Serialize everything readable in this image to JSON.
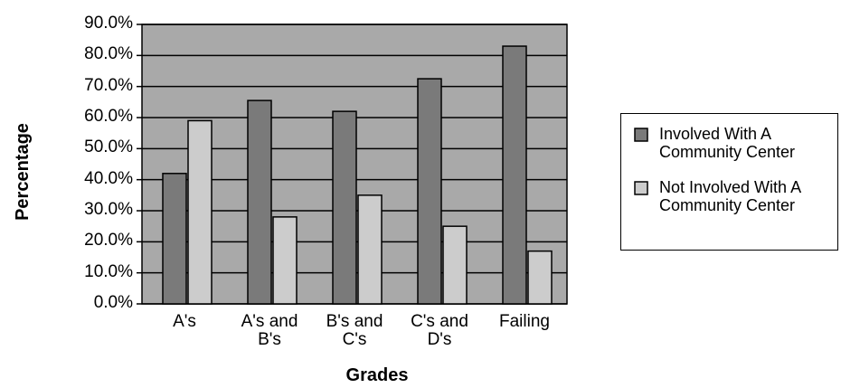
{
  "chart_data": {
    "type": "bar",
    "x_label": "Grades",
    "y_label": "Percentage",
    "categories": [
      "A's",
      "A's and B's",
      "B's and C's",
      "C's and D's",
      "Failing"
    ],
    "series": [
      {
        "name": "Involved With A Community Center",
        "color": "#7a7a7a",
        "values": [
          42,
          65.5,
          62,
          72.5,
          83
        ]
      },
      {
        "name": "Not Involved With A Community Center",
        "color": "#cccccc",
        "values": [
          59,
          28,
          35,
          25,
          17
        ]
      }
    ],
    "ylim": [
      0,
      90
    ],
    "yticks": [
      {
        "value": 0,
        "label": "0.0%"
      },
      {
        "value": 10,
        "label": "10.0%"
      },
      {
        "value": 20,
        "label": "20.0%"
      },
      {
        "value": 30,
        "label": "30.0%"
      },
      {
        "value": 40,
        "label": "40.0%"
      },
      {
        "value": 50,
        "label": "50.0%"
      },
      {
        "value": 60,
        "label": "60.0%"
      },
      {
        "value": 70,
        "label": "70.0%"
      },
      {
        "value": 80,
        "label": "80.0%"
      },
      {
        "value": 90,
        "label": "90.0%"
      }
    ],
    "grid": true,
    "plot_background": "#a9a9a9",
    "legend": "right"
  }
}
